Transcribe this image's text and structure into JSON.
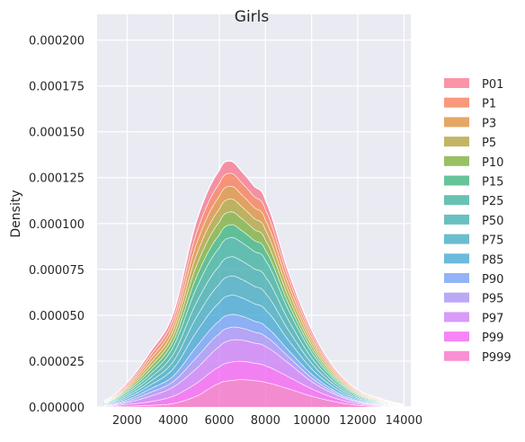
{
  "chart_data": {
    "type": "area",
    "subtype": "stacked-kde",
    "title": "Girls",
    "xlabel": "",
    "ylabel": "Density",
    "xlim": [
      700,
      14300
    ],
    "ylim": [
      0,
      0.000214
    ],
    "xticks": [
      2000,
      4000,
      6000,
      8000,
      10000,
      12000,
      14000
    ],
    "xtick_labels": [
      "2000",
      "4000",
      "6000",
      "8000",
      "10000",
      "12000",
      "14000"
    ],
    "yticks": [
      0,
      2.5e-05,
      5e-05,
      7.5e-05,
      0.0001,
      0.000125,
      0.00015,
      0.000175,
      0.0002
    ],
    "ytick_labels": [
      "0.000000",
      "0.000025",
      "0.000050",
      "0.000075",
      "0.000100",
      "0.000125",
      "0.000150",
      "0.000175",
      "0.000200"
    ],
    "grid": true,
    "background": "#eaeaf2",
    "legend_position": "right",
    "x": [
      1000,
      2000,
      3000,
      4000,
      5000,
      6000,
      6500,
      7000,
      7500,
      8000,
      9000,
      10000,
      11000,
      12000,
      13000,
      14000
    ],
    "series": [
      {
        "name": "P01",
        "color": "#f77189",
        "values": [
          3e-07,
          1e-06,
          2e-06,
          3e-06,
          6e-06,
          7e-06,
          6.5e-06,
          6e-06,
          5.5e-06,
          5e-06,
          3e-06,
          2e-06,
          1e-06,
          5e-07,
          3e-07,
          1e-07
        ]
      },
      {
        "name": "P1",
        "color": "#f7754f",
        "values": [
          2e-07,
          8e-07,
          2e-06,
          3e-06,
          6e-06,
          7e-06,
          7e-06,
          6.5e-06,
          6e-06,
          5.5e-06,
          3.5e-06,
          2e-06,
          1e-06,
          5e-07,
          3e-07,
          1e-07
        ]
      },
      {
        "name": "P3",
        "color": "#dc8932",
        "values": [
          2e-07,
          8e-07,
          2e-06,
          3e-06,
          6e-06,
          7e-06,
          7e-06,
          6.5e-06,
          6e-06,
          5.5e-06,
          3.5e-06,
          2e-06,
          1e-06,
          5e-07,
          3e-07,
          1e-07
        ]
      },
      {
        "name": "P5",
        "color": "#ae9d31",
        "values": [
          2e-07,
          8e-07,
          2e-06,
          3e-06,
          6e-06,
          7e-06,
          7e-06,
          6.5e-06,
          6e-06,
          5.5e-06,
          3.5e-06,
          2e-06,
          1e-06,
          5e-07,
          3e-07,
          1e-07
        ]
      },
      {
        "name": "P10",
        "color": "#77ab31",
        "values": [
          2e-07,
          8e-07,
          2e-06,
          3e-06,
          6e-06,
          7e-06,
          7e-06,
          6.5e-06,
          6e-06,
          5.5e-06,
          3.5e-06,
          2e-06,
          1e-06,
          5e-07,
          3e-07,
          1e-07
        ]
      },
      {
        "name": "P15",
        "color": "#33b07a",
        "values": [
          2e-07,
          8e-07,
          2e-06,
          3e-06,
          6e-06,
          7e-06,
          7e-06,
          6.5e-06,
          6e-06,
          5.5e-06,
          3.5e-06,
          2e-06,
          1e-06,
          5e-07,
          3e-07,
          1e-07
        ]
      },
      {
        "name": "P25",
        "color": "#36ad9a",
        "values": [
          3e-07,
          1e-06,
          2e-06,
          4e-06,
          8e-06,
          1e-05,
          1.05e-05,
          1e-05,
          9.5e-06,
          9e-06,
          5.5e-06,
          3e-06,
          1.5e-06,
          7e-07,
          3e-07,
          1e-07
        ]
      },
      {
        "name": "P50",
        "color": "#38aaac",
        "values": [
          3e-07,
          1e-06,
          2e-06,
          4e-06,
          8e-06,
          1e-05,
          1.05e-05,
          1e-05,
          9.5e-06,
          9e-06,
          5.5e-06,
          3e-06,
          1.5e-06,
          7e-07,
          3e-07,
          1e-07
        ]
      },
      {
        "name": "P75",
        "color": "#39a7bc",
        "values": [
          3e-07,
          1e-06,
          2e-06,
          4e-06,
          8e-06,
          1e-05,
          1.05e-05,
          1e-05,
          9.5e-06,
          9e-06,
          5.5e-06,
          3e-06,
          1.5e-06,
          7e-07,
          3e-07,
          1e-07
        ]
      },
      {
        "name": "P85",
        "color": "#3ba3d0",
        "values": [
          3e-07,
          1e-06,
          2e-06,
          4e-06,
          8e-06,
          1e-05,
          1.05e-05,
          1e-05,
          9.5e-06,
          9e-06,
          5.5e-06,
          3e-06,
          1.5e-06,
          7e-07,
          3e-07,
          1e-07
        ]
      },
      {
        "name": "P90",
        "color": "#6e9bf4",
        "values": [
          2e-07,
          8e-07,
          2e-06,
          3e-06,
          6e-06,
          7e-06,
          7e-06,
          6.5e-06,
          6e-06,
          5.5e-06,
          3.5e-06,
          2e-06,
          1e-06,
          5e-07,
          3e-07,
          1e-07
        ]
      },
      {
        "name": "P95",
        "color": "#a48cf4",
        "values": [
          2e-07,
          8e-07,
          2e-06,
          3e-06,
          6e-06,
          7e-06,
          7e-06,
          6.5e-06,
          6e-06,
          5.5e-06,
          3.5e-06,
          2e-06,
          1e-06,
          5e-07,
          3e-07,
          1e-07
        ]
      },
      {
        "name": "P97",
        "color": "#cc7af4",
        "values": [
          2e-07,
          1e-06,
          3e-06,
          5e-06,
          8e-06,
          1.1e-05,
          1.2e-05,
          1.15e-05,
          1.1e-05,
          1.05e-05,
          7.5e-06,
          4e-06,
          2e-06,
          8e-07,
          3e-07,
          1e-07
        ]
      },
      {
        "name": "P99",
        "color": "#f45cf2",
        "values": [
          2e-07,
          1e-06,
          2e-06,
          4e-06,
          7e-06,
          9e-06,
          1e-05,
          1e-05,
          9.5e-06,
          9e-06,
          6.5e-06,
          4e-06,
          2e-06,
          8e-07,
          3e-07,
          1e-07
        ]
      },
      {
        "name": "P999",
        "color": "#f66bc4",
        "values": [
          1e-07,
          5e-07,
          1e-06,
          2e-06,
          6e-06,
          1.3e-05,
          1.45e-05,
          1.5e-05,
          1.45e-05,
          1.35e-05,
          1e-05,
          6e-06,
          3e-06,
          1e-06,
          3e-07,
          1e-07
        ]
      }
    ]
  }
}
